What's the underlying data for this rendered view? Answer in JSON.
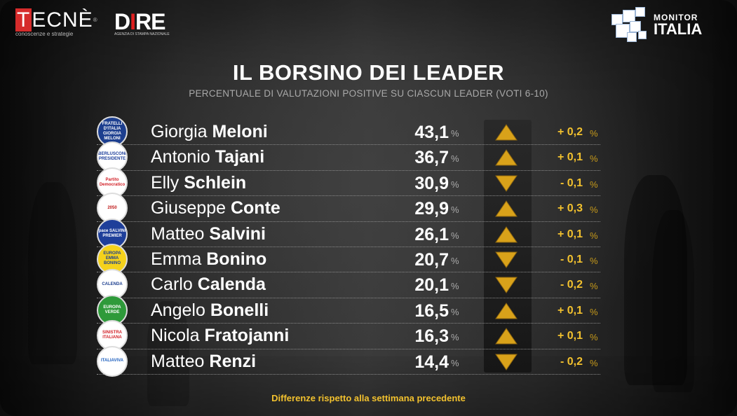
{
  "brand": {
    "tecne_name": "TECNÈ",
    "tecne_tagline": "conoscenze e strategie",
    "dire_name": "DIRE",
    "dire_tagline": "AGENZIA DI STAMPA NAZIONALE",
    "monitor_top": "MONITOR",
    "monitor_bottom": "ITALIA"
  },
  "title": "IL BORSINO DEI LEADER",
  "subtitle": "PERCENTUALE DI VALUTAZIONI POSITIVE SU CIASCUN LEADER (VOTI 6-10)",
  "percent_sign": "%",
  "colors": {
    "accent_gold": "#f2c12e",
    "arrow_gold": "#d9a21a"
  },
  "leaders": [
    {
      "first": "Giorgia",
      "last": "Meloni",
      "value": "43,1",
      "trend": "up",
      "change": "+ 0,2",
      "party": "FRATELLI D'ITALIA GIORGIA MELONI",
      "party_bg": "#1d3f8f",
      "party_fg": "#ffffff"
    },
    {
      "first": "Antonio",
      "last": "Tajani",
      "value": "36,7",
      "trend": "up",
      "change": "+ 0,1",
      "party": "BERLUSCONI PRESIDENTE",
      "party_bg": "#ffffff",
      "party_fg": "#1a3c9a"
    },
    {
      "first": "Elly",
      "last": "Schlein",
      "value": "30,9",
      "trend": "down",
      "change": "- 0,1",
      "party": "Partito Democratico",
      "party_bg": "#ffffff",
      "party_fg": "#d21f26"
    },
    {
      "first": "Giuseppe",
      "last": "Conte",
      "value": "29,9",
      "trend": "up",
      "change": "+ 0,3",
      "party": "2050",
      "party_bg": "#ffffff",
      "party_fg": "#c01a1a"
    },
    {
      "first": "Matteo",
      "last": "Salvini",
      "value": "26,1",
      "trend": "up",
      "change": "+ 0,1",
      "party": "pace SALVINI PREMIER",
      "party_bg": "#1f3f9a",
      "party_fg": "#ffffff"
    },
    {
      "first": "Emma",
      "last": "Bonino",
      "value": "20,7",
      "trend": "down",
      "change": "- 0,1",
      "party": "EUROPA EMMA BONINO",
      "party_bg": "#f5d21c",
      "party_fg": "#1d3f8f"
    },
    {
      "first": "Carlo",
      "last": "Calenda",
      "value": "20,1",
      "trend": "down",
      "change": "- 0,2",
      "party": "CALENDA",
      "party_bg": "#ffffff",
      "party_fg": "#1d3f8f"
    },
    {
      "first": "Angelo",
      "last": "Bonelli",
      "value": "16,5",
      "trend": "up",
      "change": "+ 0,1",
      "party": "EUROPA VERDE",
      "party_bg": "#2e9a3a",
      "party_fg": "#ffffff"
    },
    {
      "first": "Nicola",
      "last": "Fratojanni",
      "value": "16,3",
      "trend": "up",
      "change": "+ 0,1",
      "party": "SINISTRA ITALIANA",
      "party_bg": "#ffffff",
      "party_fg": "#d21f26"
    },
    {
      "first": "Matteo",
      "last": "Renzi",
      "value": "14,4",
      "trend": "down",
      "change": "- 0,2",
      "party": "ITALIAVIVA",
      "party_bg": "#ffffff",
      "party_fg": "#1d5fbf"
    }
  ],
  "footer": "Differenze rispetto alla settimana precedente"
}
